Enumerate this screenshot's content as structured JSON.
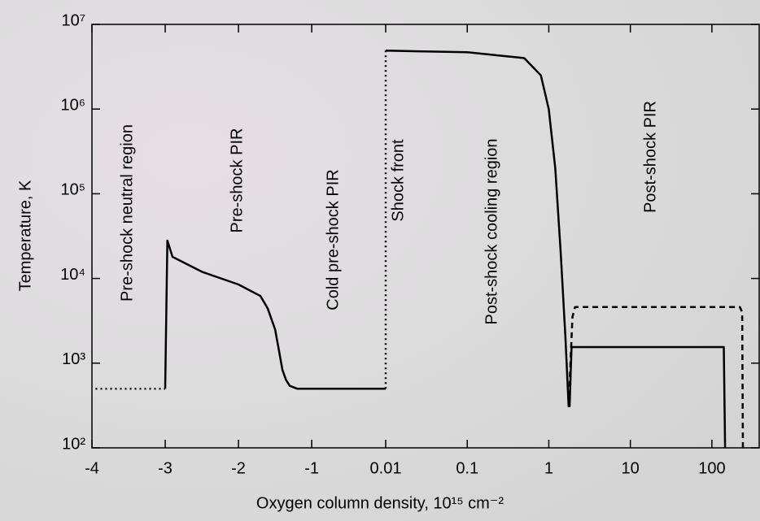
{
  "chart_data": {
    "type": "line",
    "xlabel": "Oxygen column density, 10¹⁵ cm⁻²",
    "ylabel": "Temperature, K",
    "xlim": [
      -4,
      380
    ],
    "xscale": "linear-log",
    "xbreak": 0.01,
    "xticks": [
      -4,
      -3,
      -2,
      -1,
      0.01,
      0.1,
      1,
      10,
      100
    ],
    "ylim": [
      100,
      10000000
    ],
    "yscale": "log",
    "yticks": [
      {
        "value": 100,
        "label": "10²"
      },
      {
        "value": 1000,
        "label": "10³"
      },
      {
        "value": 10000,
        "label": "10⁴"
      },
      {
        "value": 100000,
        "label": "10⁵"
      },
      {
        "value": 1000000,
        "label": "10⁶"
      },
      {
        "value": 10000000,
        "label": "10⁷"
      }
    ],
    "annotations": [
      "Pre-shock neutral region",
      "Pre-shock PIR",
      "Cold pre-shock PIR",
      "Shock front",
      "Post-shock cooling region",
      "Post-shock PIR"
    ],
    "series": [
      {
        "color": "#000000",
        "dash": "dotted",
        "x": [
          -3.95,
          -3
        ],
        "values": [
          500,
          500
        ]
      },
      {
        "color": "#000000",
        "dash": "solid",
        "x": [
          -3,
          -2.97,
          -2.9,
          -2.5,
          -2,
          -1.7,
          -1.6,
          -1.5,
          -1.45,
          -1.4,
          -1.35,
          -1.3,
          -1.2,
          0.01
        ],
        "values": [
          500,
          28000,
          18000,
          12000,
          8500,
          6200,
          4400,
          2500,
          1450,
          830,
          630,
          540,
          500,
          500
        ]
      },
      {
        "color": "#000000",
        "dash": "dotted",
        "x": [
          0.01,
          0.01
        ],
        "values": [
          500,
          4900000
        ]
      },
      {
        "color": "#000000",
        "dash": "solid",
        "x": [
          0.01,
          0.1,
          0.5,
          0.8,
          1,
          1.2,
          1.4,
          1.6,
          1.75,
          1.8,
          1.9,
          140,
          145
        ],
        "values": [
          4900000,
          4700000,
          4000000,
          2500000,
          1000000,
          200000,
          20000,
          2000,
          310,
          310,
          1550,
          1550,
          100
        ]
      },
      {
        "color": "#000000",
        "dash": "dashed",
        "x": [
          1.75,
          1.95,
          2.1,
          220,
          235,
          240
        ],
        "values": [
          310,
          3500,
          4600,
          4600,
          4000,
          100
        ]
      }
    ]
  }
}
